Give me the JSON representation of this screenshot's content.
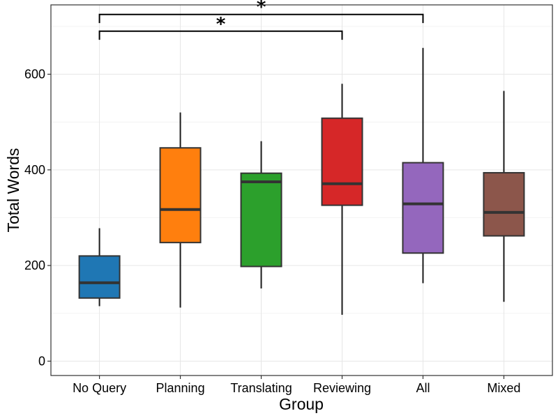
{
  "chart_data": {
    "type": "boxplot",
    "title": "",
    "xlabel": "Group",
    "ylabel": "Total Words",
    "ylim": [
      -30,
      745
    ],
    "yticks": [
      0,
      200,
      400,
      600
    ],
    "ytick_labels": [
      "0",
      "200",
      "400",
      "600"
    ],
    "grid": true,
    "categories": [
      "No Query",
      "Planning",
      "Translating",
      "Reviewing",
      "All",
      "Mixed"
    ],
    "boxes": [
      {
        "name": "No Query",
        "min": 115,
        "q1": 132,
        "median": 164,
        "q3": 220,
        "max": 278,
        "color": "#1f77b4"
      },
      {
        "name": "Planning",
        "min": 112,
        "q1": 248,
        "median": 317,
        "q3": 446,
        "max": 520,
        "color": "#ff7f0e"
      },
      {
        "name": "Translating",
        "min": 152,
        "q1": 198,
        "median": 375,
        "q3": 393,
        "max": 460,
        "color": "#2ca02c"
      },
      {
        "name": "Reviewing",
        "min": 97,
        "q1": 326,
        "median": 371,
        "q3": 508,
        "max": 580,
        "color": "#d62728"
      },
      {
        "name": "All",
        "min": 163,
        "q1": 226,
        "median": 329,
        "q3": 415,
        "max": 655,
        "color": "#9467bd"
      },
      {
        "name": "Mixed",
        "min": 124,
        "q1": 262,
        "median": 311,
        "q3": 394,
        "max": 565,
        "color": "#8c564b"
      }
    ],
    "significance": [
      {
        "from": "No Query",
        "to": "Reviewing",
        "label": "*",
        "y": 672,
        "top": 690
      },
      {
        "from": "No Query",
        "to": "All",
        "label": "*",
        "y": 707,
        "top": 725
      }
    ]
  }
}
